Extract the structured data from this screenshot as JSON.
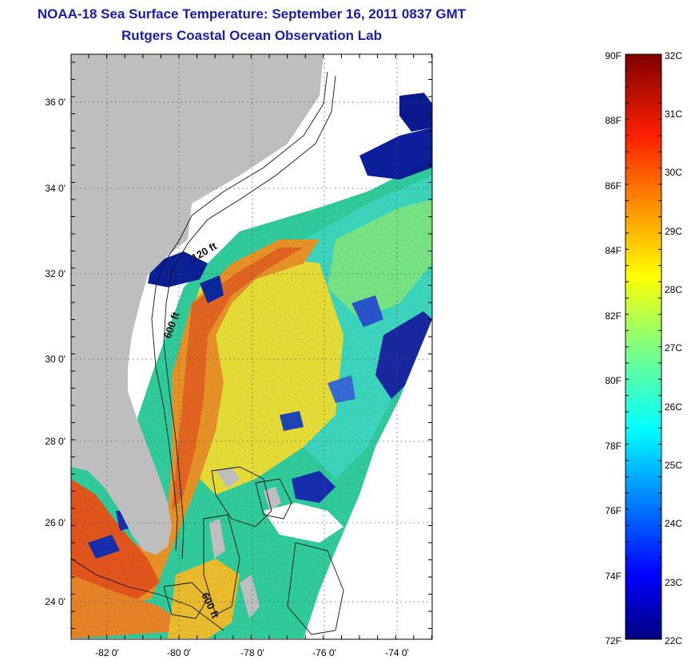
{
  "title": {
    "line1": "NOAA-18 Sea Surface Temperature:  September 16, 2011 0837 GMT",
    "line2": "Rutgers Coastal Ocean Observation Lab"
  },
  "map": {
    "lat_ticks": [
      "36 0'",
      "34 0'",
      "32 0'",
      "30 0'",
      "28 0'",
      "26 0'",
      "24 0'"
    ],
    "lon_ticks": [
      "-82 0'",
      "-80 0'",
      "-78 0'",
      "-76 0'",
      "-74 0'"
    ],
    "contour_labels": [
      "120 ft",
      "600 ft",
      "600 ft"
    ],
    "colors": {
      "land": "#bebebe",
      "cloud": "#ffffff",
      "cold": "#0a1a8c",
      "warm": "#e8561a"
    }
  },
  "colorbar": {
    "fahrenheit_labels": [
      "90F",
      "88F",
      "86F",
      "84F",
      "82F",
      "80F",
      "78F",
      "76F",
      "74F",
      "72F"
    ],
    "celsius_labels": [
      "32C",
      "31C",
      "30C",
      "29C",
      "28C",
      "27C",
      "26C",
      "25C",
      "24C",
      "23C",
      "22C"
    ]
  }
}
